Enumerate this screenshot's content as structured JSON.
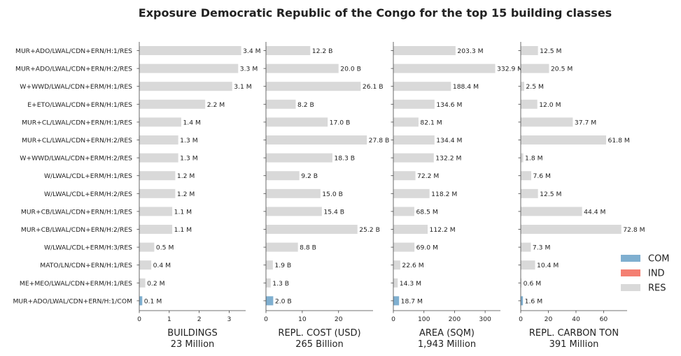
{
  "chart_data": {
    "type": "bar",
    "orientation": "horizontal",
    "title": "Exposure Democratic Republic of the Congo for the top 15 building classes",
    "categories": [
      "MUR+ADO/LWAL/CDN+ERN/H:1/RES",
      "MUR+ADO/LWAL/CDN+ERN/H:2/RES",
      "W+WWD/LWAL/CDN+ERM/H:1/RES",
      "E+ETO/LWAL/CDN+ERN/H:1/RES",
      "MUR+CL/LWAL/CDN+ERN/H:1/RES",
      "MUR+CL/LWAL/CDN+ERN/H:2/RES",
      "W+WWD/LWAL/CDN+ERM/H:2/RES",
      "W/LWAL/CDL+ERM/H:1/RES",
      "W/LWAL/CDL+ERM/H:2/RES",
      "MUR+CB/LWAL/CDN+ERN/H:1/RES",
      "MUR+CB/LWAL/CDN+ERN/H:2/RES",
      "W/LWAL/CDL+ERM/H:3/RES",
      "MATO/LN/CDN+ERN/H:1/RES",
      "ME+MEO/LWAL/CDN+ERM/H:1/RES",
      "MUR+ADO/LWAL/CDN+ERN/H:1/COM"
    ],
    "occupancy": [
      "RES",
      "RES",
      "RES",
      "RES",
      "RES",
      "RES",
      "RES",
      "RES",
      "RES",
      "RES",
      "RES",
      "RES",
      "RES",
      "RES",
      "COM"
    ],
    "legend": {
      "placement": "right",
      "entries": [
        {
          "name": "COM",
          "color": "#7fafd0"
        },
        {
          "name": "IND",
          "color": "#f47f72"
        },
        {
          "name": "RES",
          "color": "#d9d9d9"
        }
      ]
    },
    "panels": [
      {
        "xlabel": "BUILDINGS",
        "total": "23 Million",
        "xlim": [
          0,
          3.55
        ],
        "xticks": [
          0,
          1,
          2,
          3
        ],
        "values": [
          3.4,
          3.3,
          3.1,
          2.2,
          1.4,
          1.3,
          1.3,
          1.2,
          1.2,
          1.1,
          1.1,
          0.5,
          0.4,
          0.2,
          0.1
        ],
        "labels": [
          "3.4 M",
          "3.3 M",
          "3.1 M",
          "2.2 M",
          "1.4 M",
          "1.3 M",
          "1.3 M",
          "1.2 M",
          "1.2 M",
          "1.1 M",
          "1.1 M",
          "0.5 M",
          "0.4 M",
          "0.2 M",
          "0.1 M"
        ]
      },
      {
        "xlabel": "REPL. COST (USD)",
        "total": "265 Billion",
        "xlim": [
          0,
          29.5
        ],
        "xticks": [
          0,
          10,
          20
        ],
        "values": [
          12.2,
          20.0,
          26.1,
          8.2,
          17.0,
          27.8,
          18.3,
          9.2,
          15.0,
          15.4,
          25.2,
          8.8,
          1.9,
          1.3,
          2.0
        ],
        "labels": [
          "12.2 B",
          "20.0 B",
          "26.1 B",
          "8.2 B",
          "17.0 B",
          "27.8 B",
          "18.3 B",
          "9.2 B",
          "15.0 B",
          "15.4 B",
          "25.2 B",
          "8.8 B",
          "1.9 B",
          "1.3 B",
          "2.0 B"
        ]
      },
      {
        "xlabel": "AREA (SQM)",
        "total": "1,943 Million",
        "xlim": [
          0,
          350
        ],
        "xticks": [
          0,
          100,
          200,
          300
        ],
        "values": [
          203.3,
          332.9,
          188.4,
          134.6,
          82.1,
          134.4,
          132.2,
          72.2,
          118.2,
          68.5,
          112.2,
          69.0,
          22.6,
          14.3,
          18.7
        ],
        "labels": [
          "203.3 M",
          "332.9 M",
          "188.4 M",
          "134.6 M",
          "82.1 M",
          "134.4 M",
          "132.2 M",
          "72.2 M",
          "118.2 M",
          "68.5 M",
          "112.2 M",
          "69.0 M",
          "22.6 M",
          "14.3 M",
          "18.7 M"
        ]
      },
      {
        "xlabel": "REPL. CARBON TON",
        "total": "391 Million",
        "xlim": [
          0,
          77
        ],
        "xticks": [
          0,
          20,
          40,
          60
        ],
        "values": [
          12.5,
          20.5,
          2.5,
          12.0,
          37.7,
          61.8,
          1.8,
          7.6,
          12.5,
          44.4,
          72.8,
          7.3,
          10.4,
          0.6,
          1.6
        ],
        "labels": [
          "12.5 M",
          "20.5 M",
          "2.5 M",
          "12.0 M",
          "37.7 M",
          "61.8 M",
          "1.8 M",
          "7.6 M",
          "12.5 M",
          "44.4 M",
          "72.8 M",
          "7.3 M",
          "10.4 M",
          "0.6 M",
          "1.6 M"
        ]
      }
    ]
  }
}
